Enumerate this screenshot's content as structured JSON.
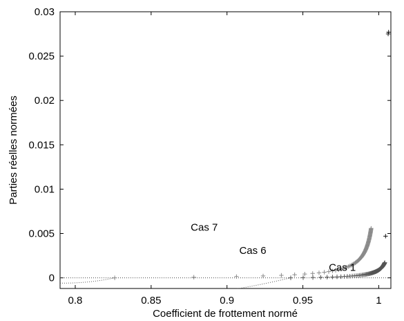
{
  "chart_data": {
    "type": "scatter",
    "title": "",
    "xlabel": "Coefficient de frottement normé",
    "ylabel": "Parties réelles normées",
    "xlim": [
      0.79,
      1.008
    ],
    "ylim": [
      -0.0012,
      0.03
    ],
    "xticks": [
      0.8,
      0.85,
      0.9,
      0.95,
      1
    ],
    "xtick_labels": [
      "0.8",
      "0.85",
      "0.9",
      "0.95",
      "1"
    ],
    "yticks": [
      0,
      0.005,
      0.01,
      0.015,
      0.02,
      0.025,
      0.03
    ],
    "ytick_labels": [
      "0",
      "0.005",
      "0.01",
      "0.015",
      "0.02",
      "0.025",
      "0.03"
    ],
    "grid": false,
    "box": true,
    "colors": {
      "cas7": "#8a8a8a",
      "cas6": "#555555",
      "cas1": "#111111",
      "zero_line": "#444444",
      "tail": "#555555"
    },
    "annotations": [
      {
        "text": "Cas 7",
        "x": 0.885,
        "y": 0.0053
      },
      {
        "text": "Cas 6",
        "x": 0.917,
        "y": 0.0027
      },
      {
        "text": "Cas 1",
        "x": 0.976,
        "y": 0.0008
      }
    ],
    "series": [
      {
        "label_ref": "Cas 7",
        "marker": "+",
        "model": {
          "x0": 0.826,
          "x1": 0.995,
          "xc": 1.0,
          "K": 0.000165,
          "p": 1.0,
          "n": 80
        },
        "tail": {
          "x_start": 0.79,
          "y_start": -0.0006,
          "x_end": 0.826,
          "y_end": 0.0
        }
      },
      {
        "label_ref": "Cas 6",
        "marker": "+",
        "model": {
          "x0": 0.942,
          "x1": 1.004,
          "xc": 1.009,
          "K": 0.000138,
          "p": 1.0,
          "n": 90
        },
        "tail": {
          "x_start": 0.79,
          "y_start": -0.0028,
          "x_end": 0.942,
          "y_end": 0.0
        }
      },
      {
        "label_ref": "Cas 1",
        "marker": "+",
        "points": [
          [
            1.0045,
            0.0047
          ],
          [
            1.0062,
            0.0275
          ],
          [
            1.0065,
            0.0277
          ]
        ]
      }
    ],
    "zero_line": {
      "y": 0,
      "x_start": 0.79,
      "x_end": 1.0065
    }
  }
}
